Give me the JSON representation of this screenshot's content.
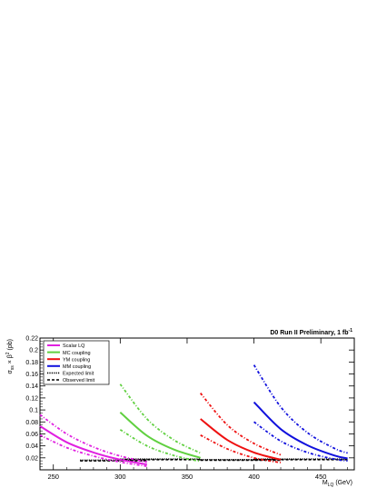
{
  "chart_data": {
    "type": "line",
    "title": "D0 Run II Preliminary, 1 fb",
    "title_superscript": "-1",
    "xlabel_main": "M",
    "xlabel_sub": "LQ",
    "xlabel_unit": " (GeV)",
    "ylabel_main": "σ",
    "ylabel_sub": "ss",
    "ylabel_times": " × β",
    "ylabel_sup": "2",
    "ylabel_unit": " (pb)",
    "xlim": [
      240,
      475
    ],
    "ylim": [
      0,
      0.22
    ],
    "x_ticks": [
      250,
      300,
      350,
      400,
      450
    ],
    "y_ticks": [
      0.02,
      0.04,
      0.06,
      0.08,
      0.1,
      0.12,
      0.14,
      0.16,
      0.18,
      0.2,
      0.22
    ],
    "legend_position": "top-left",
    "legend": [
      {
        "label": "Scalar LQ",
        "color": "#e020e0",
        "style": "solid"
      },
      {
        "label": "MC coupling",
        "color": "#60d040",
        "style": "solid"
      },
      {
        "label": "YM coupling",
        "color": "#ee1111",
        "style": "solid"
      },
      {
        "label": "MM coupling",
        "color": "#1111dd",
        "style": "solid"
      },
      {
        "label": "Expected limit",
        "color": "#000000",
        "style": "dotted"
      },
      {
        "label": "Observed limit",
        "color": "#000000",
        "style": "dashed"
      }
    ],
    "series": [
      {
        "name": "Scalar LQ",
        "color": "#e020e0",
        "x": [
          240,
          260,
          280,
          300,
          320
        ],
        "y": [
          0.073,
          0.046,
          0.029,
          0.017,
          0.009
        ],
        "band_upper": [
          0.092,
          0.06,
          0.038,
          0.023,
          0.013
        ],
        "band_lower": [
          0.058,
          0.037,
          0.023,
          0.013,
          0.006
        ]
      },
      {
        "name": "MC coupling",
        "color": "#60d040",
        "x": [
          300,
          320,
          340,
          360
        ],
        "y": [
          0.096,
          0.057,
          0.034,
          0.02
        ],
        "band_upper": [
          0.143,
          0.085,
          0.05,
          0.028
        ],
        "band_lower": [
          0.067,
          0.04,
          0.024,
          0.014
        ]
      },
      {
        "name": "YM coupling",
        "color": "#ee1111",
        "x": [
          360,
          380,
          400,
          420
        ],
        "y": [
          0.085,
          0.05,
          0.029,
          0.017
        ],
        "band_upper": [
          0.128,
          0.075,
          0.044,
          0.025
        ],
        "band_lower": [
          0.058,
          0.035,
          0.02,
          0.012
        ]
      },
      {
        "name": "MM coupling",
        "color": "#1111dd",
        "x": [
          400,
          420,
          440,
          460,
          470
        ],
        "y": [
          0.113,
          0.068,
          0.041,
          0.024,
          0.019
        ],
        "band_upper": [
          0.175,
          0.105,
          0.062,
          0.036,
          0.028
        ],
        "band_lower": [
          0.08,
          0.048,
          0.029,
          0.018,
          0.015
        ]
      }
    ],
    "limits": [
      {
        "name": "Expected limit",
        "segments": [
          {
            "x": [
              270,
              320
            ],
            "y": 0.016
          },
          {
            "x": [
              300,
              360
            ],
            "y": 0.018
          },
          {
            "x": [
              360,
              420
            ],
            "y": 0.017
          },
          {
            "x": [
              400,
              470
            ],
            "y": 0.018
          }
        ]
      },
      {
        "name": "Observed limit",
        "segments": [
          {
            "x": [
              270,
              320
            ],
            "y": 0.015
          },
          {
            "x": [
              300,
              360
            ],
            "y": 0.017
          },
          {
            "x": [
              360,
              420
            ],
            "y": 0.016
          },
          {
            "x": [
              400,
              470
            ],
            "y": 0.017
          }
        ]
      }
    ]
  }
}
